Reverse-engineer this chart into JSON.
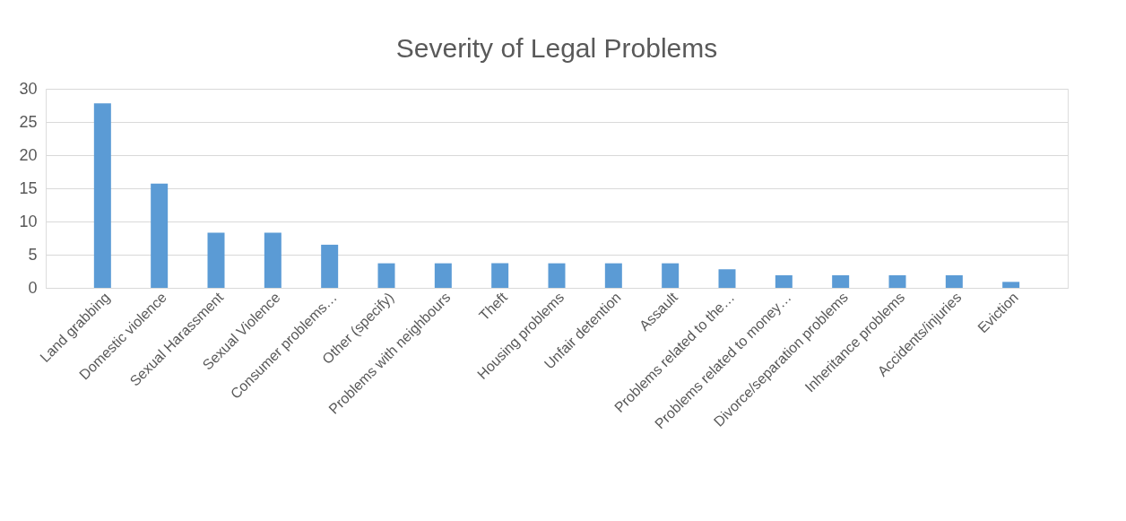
{
  "chart_data": {
    "type": "bar",
    "title": "Severity of Legal Problems",
    "categories": [
      "Land grabbing",
      "Domestic violence",
      "Sexual Harassment",
      "Sexual Violence",
      "Consumer problems…",
      "Other (specify)",
      "Problems with neighbours",
      "Theft",
      "Housing problems",
      "Unfair detention",
      "Assault",
      "Problems related to the…",
      "Problems related to money…",
      "Divorce/separation problems",
      "Inheritance problems",
      "Accidents/injuries",
      "Eviction"
    ],
    "values": [
      27.8,
      15.7,
      8.3,
      8.3,
      6.5,
      3.7,
      3.7,
      3.7,
      3.7,
      3.7,
      3.7,
      2.8,
      1.9,
      1.9,
      1.9,
      1.9,
      0.9
    ],
    "color": "#5b9bd5",
    "ylim": [
      0,
      30
    ],
    "yticks": [
      0,
      5,
      10,
      15,
      20,
      25,
      30
    ],
    "grid": "y"
  }
}
